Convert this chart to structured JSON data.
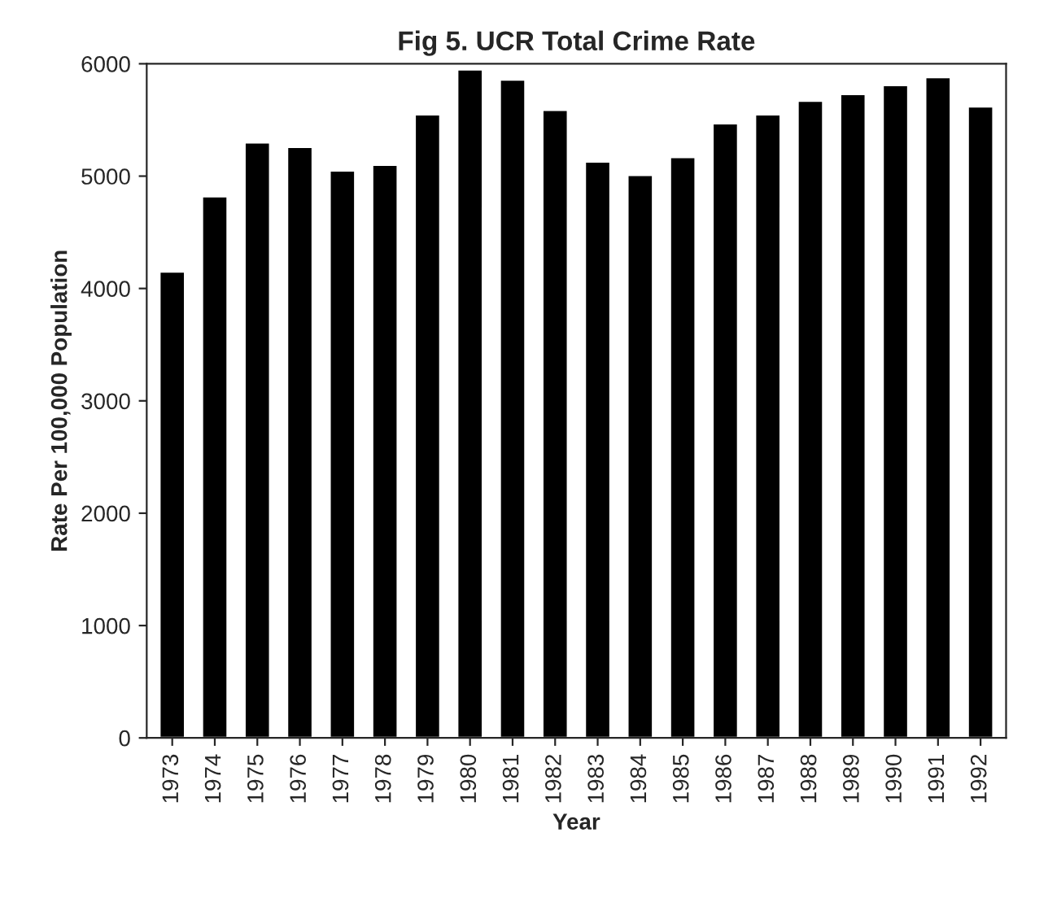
{
  "chart_data": {
    "type": "bar",
    "title": "Fig 5. UCR Total Crime Rate",
    "xlabel": "Year",
    "ylabel": "Rate Per 100,000 Population",
    "categories": [
      "1973",
      "1974",
      "1975",
      "1976",
      "1977",
      "1978",
      "1979",
      "1980",
      "1981",
      "1982",
      "1983",
      "1984",
      "1985",
      "1986",
      "1987",
      "1988",
      "1989",
      "1990",
      "1991",
      "1992"
    ],
    "values": [
      4150,
      4820,
      5300,
      5260,
      5050,
      5100,
      5550,
      5950,
      5860,
      5590,
      5130,
      5010,
      5170,
      5470,
      5550,
      5670,
      5730,
      5810,
      5880,
      5620
    ],
    "color": "#000000",
    "ylim": [
      0,
      6000
    ],
    "yticks": [
      0,
      1000,
      2000,
      3000,
      4000,
      5000,
      6000
    ],
    "grid": false
  }
}
